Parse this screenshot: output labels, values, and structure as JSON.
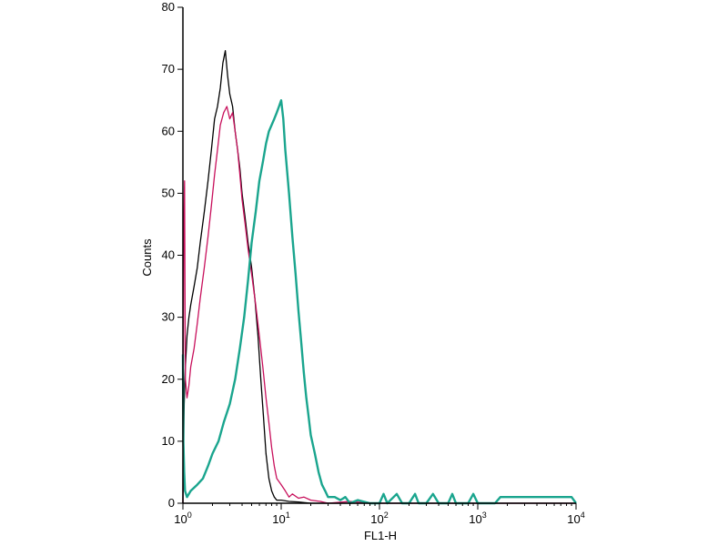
{
  "chart_data": {
    "type": "line",
    "xlabel": "FL1-H",
    "ylabel": "Counts",
    "x_scale": "log",
    "xlim": [
      1,
      10000
    ],
    "ylim": [
      0,
      80
    ],
    "x_ticks": [
      {
        "base": "10",
        "exp": "0"
      },
      {
        "base": "10",
        "exp": "1"
      },
      {
        "base": "10",
        "exp": "2"
      },
      {
        "base": "10",
        "exp": "3"
      },
      {
        "base": "10",
        "exp": "4"
      }
    ],
    "y_ticks": [
      "0",
      "10",
      "20",
      "30",
      "40",
      "50",
      "60",
      "70",
      "80"
    ],
    "grid": false,
    "series": [
      {
        "color": "#000000",
        "points": [
          [
            1.0,
            0
          ],
          [
            1.03,
            16
          ],
          [
            1.06,
            22
          ],
          [
            1.1,
            27
          ],
          [
            1.15,
            30
          ],
          [
            1.2,
            32
          ],
          [
            1.3,
            35
          ],
          [
            1.4,
            38
          ],
          [
            1.5,
            42
          ],
          [
            1.65,
            47
          ],
          [
            1.8,
            52
          ],
          [
            1.95,
            57
          ],
          [
            2.1,
            62
          ],
          [
            2.25,
            64
          ],
          [
            2.4,
            67
          ],
          [
            2.55,
            71
          ],
          [
            2.7,
            73
          ],
          [
            2.85,
            69
          ],
          [
            3.0,
            66
          ],
          [
            3.2,
            64
          ],
          [
            3.4,
            60
          ],
          [
            3.6,
            57
          ],
          [
            3.8,
            54
          ],
          [
            4.0,
            50
          ],
          [
            4.3,
            46
          ],
          [
            4.6,
            42
          ],
          [
            5.0,
            38
          ],
          [
            5.4,
            33
          ],
          [
            5.8,
            27
          ],
          [
            6.2,
            20
          ],
          [
            6.6,
            14
          ],
          [
            7.0,
            8
          ],
          [
            7.5,
            4
          ],
          [
            8.0,
            2
          ],
          [
            8.5,
            1
          ],
          [
            9.0,
            0.5
          ],
          [
            10,
            0.5
          ],
          [
            12,
            0.3
          ],
          [
            15,
            0.2
          ],
          [
            20,
            0
          ],
          [
            30,
            0
          ],
          [
            100,
            0
          ],
          [
            10000,
            0
          ]
        ]
      },
      {
        "color": "#c8105c",
        "points": [
          [
            1.0,
            0
          ],
          [
            1.02,
            45
          ],
          [
            1.04,
            52
          ],
          [
            1.06,
            20
          ],
          [
            1.1,
            17
          ],
          [
            1.15,
            19
          ],
          [
            1.2,
            22
          ],
          [
            1.3,
            25
          ],
          [
            1.4,
            29
          ],
          [
            1.5,
            33
          ],
          [
            1.65,
            38
          ],
          [
            1.8,
            43
          ],
          [
            1.95,
            48
          ],
          [
            2.1,
            53
          ],
          [
            2.25,
            57
          ],
          [
            2.4,
            61
          ],
          [
            2.6,
            63
          ],
          [
            2.8,
            64
          ],
          [
            3.0,
            62
          ],
          [
            3.2,
            63
          ],
          [
            3.4,
            60
          ],
          [
            3.6,
            57
          ],
          [
            3.8,
            53
          ],
          [
            4.0,
            49
          ],
          [
            4.3,
            45
          ],
          [
            4.6,
            41
          ],
          [
            5.0,
            37
          ],
          [
            5.5,
            32
          ],
          [
            6.0,
            27
          ],
          [
            6.5,
            22
          ],
          [
            7.0,
            17
          ],
          [
            7.5,
            13
          ],
          [
            8.0,
            9
          ],
          [
            8.5,
            6
          ],
          [
            9.0,
            4
          ],
          [
            10,
            3
          ],
          [
            11,
            2
          ],
          [
            12,
            1
          ],
          [
            13,
            1.5
          ],
          [
            15,
            0.8
          ],
          [
            17,
            1
          ],
          [
            20,
            0.5
          ],
          [
            25,
            0.3
          ],
          [
            30,
            0
          ],
          [
            50,
            0.3
          ],
          [
            80,
            0
          ],
          [
            10000,
            0
          ]
        ]
      },
      {
        "color": "#1aa58e",
        "points": [
          [
            1.0,
            24
          ],
          [
            1.01,
            10
          ],
          [
            1.03,
            5
          ],
          [
            1.05,
            2
          ],
          [
            1.1,
            1
          ],
          [
            1.2,
            2
          ],
          [
            1.4,
            3
          ],
          [
            1.6,
            4
          ],
          [
            1.8,
            6
          ],
          [
            2.0,
            8
          ],
          [
            2.3,
            10
          ],
          [
            2.6,
            13
          ],
          [
            3.0,
            16
          ],
          [
            3.4,
            20
          ],
          [
            3.8,
            25
          ],
          [
            4.2,
            30
          ],
          [
            4.6,
            36
          ],
          [
            5.0,
            42
          ],
          [
            5.5,
            47
          ],
          [
            6.0,
            52
          ],
          [
            6.5,
            55
          ],
          [
            7.0,
            58
          ],
          [
            7.5,
            60
          ],
          [
            8.0,
            61
          ],
          [
            8.5,
            62
          ],
          [
            9.0,
            63
          ],
          [
            9.5,
            64
          ],
          [
            10.0,
            65
          ],
          [
            10.5,
            62
          ],
          [
            11.0,
            57
          ],
          [
            12.0,
            50
          ],
          [
            13.0,
            43
          ],
          [
            14.0,
            37
          ],
          [
            15.0,
            31
          ],
          [
            16.0,
            26
          ],
          [
            17.0,
            21
          ],
          [
            18.0,
            17
          ],
          [
            19.0,
            14
          ],
          [
            20.0,
            11
          ],
          [
            22.0,
            8
          ],
          [
            24.0,
            5
          ],
          [
            26.0,
            3
          ],
          [
            28.0,
            2
          ],
          [
            30.0,
            1
          ],
          [
            35.0,
            1
          ],
          [
            40.0,
            0.5
          ],
          [
            45.0,
            1
          ],
          [
            50.0,
            0
          ],
          [
            60.0,
            0.5
          ],
          [
            80.0,
            0
          ],
          [
            100.0,
            0
          ],
          [
            110.0,
            1.5
          ],
          [
            120.0,
            0
          ],
          [
            150.0,
            1.5
          ],
          [
            170.0,
            0
          ],
          [
            200.0,
            0
          ],
          [
            230.0,
            1.5
          ],
          [
            250.0,
            0
          ],
          [
            300.0,
            0
          ],
          [
            350.0,
            1.5
          ],
          [
            400.0,
            0
          ],
          [
            500.0,
            0
          ],
          [
            550.0,
            1.5
          ],
          [
            600.0,
            0
          ],
          [
            800.0,
            0
          ],
          [
            900.0,
            1.5
          ],
          [
            1000.0,
            0
          ],
          [
            1500.0,
            0
          ],
          [
            1700.0,
            1
          ],
          [
            2000.0,
            1
          ],
          [
            3000.0,
            1
          ],
          [
            5000.0,
            1
          ],
          [
            7000.0,
            1
          ],
          [
            9000.0,
            1
          ],
          [
            10000.0,
            0
          ]
        ]
      }
    ]
  }
}
